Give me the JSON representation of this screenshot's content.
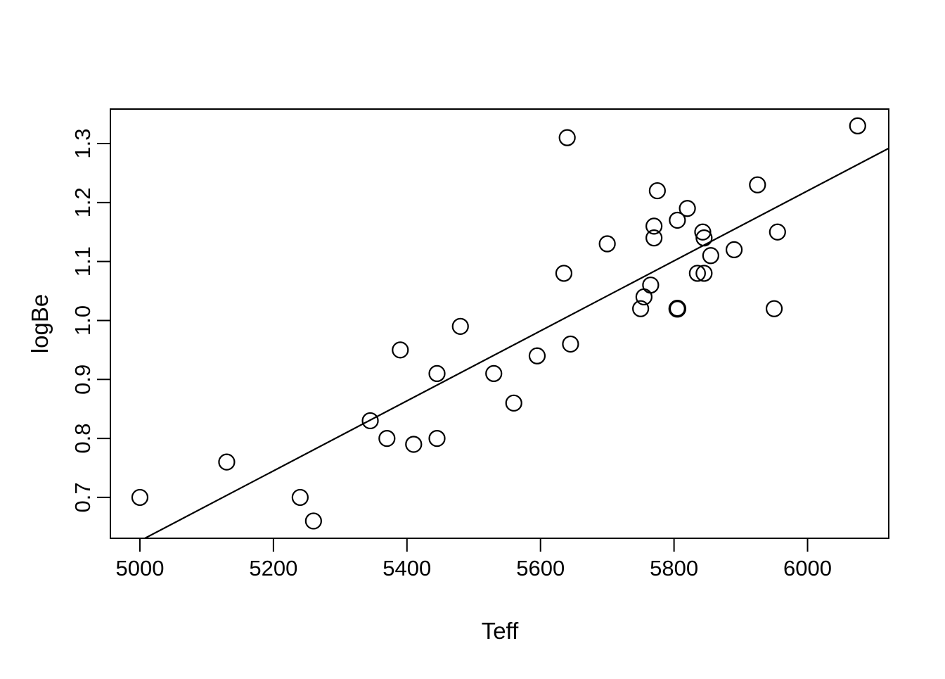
{
  "chart_data": {
    "type": "scatter",
    "title": "",
    "xlabel": "Teff",
    "ylabel": "logBe",
    "xlim": [
      4955.8,
      6121.6
    ],
    "ylim": [
      0.6307,
      1.3585
    ],
    "grid": false,
    "legend": "none",
    "marker": {
      "shape": "open-circle",
      "color": "#000000"
    },
    "colors": {
      "background": "#ffffff",
      "axis": "#000000",
      "points": "#000000",
      "fit_line": "#000000"
    },
    "x_ticks": [
      {
        "value": 5000,
        "label": "5000"
      },
      {
        "value": 5200,
        "label": "5200"
      },
      {
        "value": 5400,
        "label": "5400"
      },
      {
        "value": 5600,
        "label": "5600"
      },
      {
        "value": 5800,
        "label": "5800"
      },
      {
        "value": 6000,
        "label": "6000"
      }
    ],
    "y_ticks": [
      {
        "value": 0.7,
        "label": "0.7"
      },
      {
        "value": 0.8,
        "label": "0.8"
      },
      {
        "value": 0.9,
        "label": "0.9"
      },
      {
        "value": 1.0,
        "label": "1.0"
      },
      {
        "value": 1.1,
        "label": "1.1"
      },
      {
        "value": 1.2,
        "label": "1.2"
      },
      {
        "value": 1.3,
        "label": "1.3"
      }
    ],
    "points": [
      [
        5000,
        0.7
      ],
      [
        5130,
        0.76
      ],
      [
        5240,
        0.7
      ],
      [
        5260,
        0.66
      ],
      [
        5345,
        0.83
      ],
      [
        5370,
        0.8
      ],
      [
        5390,
        0.95
      ],
      [
        5410,
        0.79
      ],
      [
        5445,
        0.8
      ],
      [
        5445,
        0.91
      ],
      [
        5480,
        0.99
      ],
      [
        5530,
        0.91
      ],
      [
        5560,
        0.86
      ],
      [
        5595,
        0.94
      ],
      [
        5635,
        1.08
      ],
      [
        5640,
        1.31
      ],
      [
        5645,
        0.96
      ],
      [
        5700,
        1.13
      ],
      [
        5750,
        1.02
      ],
      [
        5755,
        1.04
      ],
      [
        5765,
        1.06
      ],
      [
        5770,
        1.14
      ],
      [
        5770,
        1.16
      ],
      [
        5775,
        1.22
      ],
      [
        5805,
        1.02
      ],
      [
        5805,
        1.02
      ],
      [
        5805,
        1.17
      ],
      [
        5820,
        1.19
      ],
      [
        5835,
        1.08
      ],
      [
        5843,
        1.15
      ],
      [
        5845,
        1.08
      ],
      [
        5845,
        1.14
      ],
      [
        5855,
        1.11
      ],
      [
        5890,
        1.12
      ],
      [
        5925,
        1.23
      ],
      [
        5950,
        1.02
      ],
      [
        5955,
        1.15
      ],
      [
        6075,
        1.33
      ]
    ],
    "fit_line": {
      "type": "least-squares",
      "slope": 0.0005935,
      "intercept": -2.3412
    }
  }
}
